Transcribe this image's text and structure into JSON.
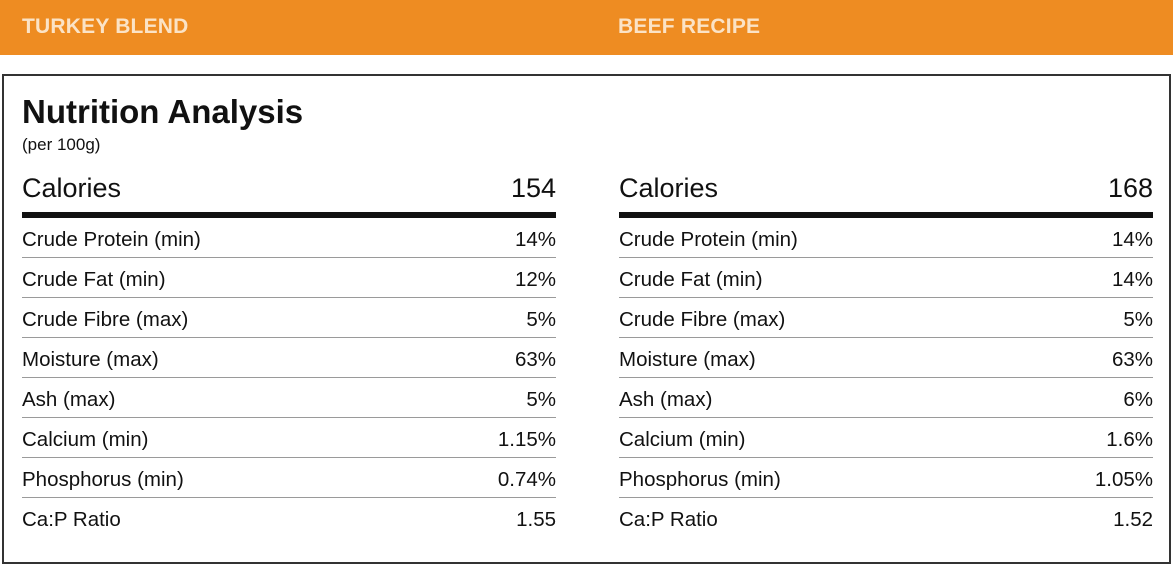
{
  "header": {
    "left_label": "TURKEY BLEND",
    "right_label": "BEEF RECIPE"
  },
  "panel": {
    "title": "Nutrition Analysis",
    "subtitle": "(per 100g)"
  },
  "turkey": {
    "calories": {
      "label": "Calories",
      "value": "154"
    },
    "rows": [
      {
        "label": "Crude Protein (min)",
        "value": "14%"
      },
      {
        "label": "Crude Fat (min)",
        "value": "12%"
      },
      {
        "label": "Crude Fibre (max)",
        "value": "5%"
      },
      {
        "label": "Moisture (max)",
        "value": "63%"
      },
      {
        "label": "Ash (max)",
        "value": "5%"
      },
      {
        "label": "Calcium (min)",
        "value": "1.15%"
      },
      {
        "label": "Phosphorus (min)",
        "value": "0.74%"
      },
      {
        "label": "Ca:P Ratio",
        "value": "1.55"
      }
    ]
  },
  "beef": {
    "calories": {
      "label": "Calories",
      "value": "168"
    },
    "rows": [
      {
        "label": "Crude Protein (min)",
        "value": "14%"
      },
      {
        "label": "Crude Fat (min)",
        "value": "14%"
      },
      {
        "label": "Crude Fibre (max)",
        "value": "5%"
      },
      {
        "label": "Moisture (max)",
        "value": "63%"
      },
      {
        "label": "Ash (max)",
        "value": "6%"
      },
      {
        "label": "Calcium (min)",
        "value": "1.6%"
      },
      {
        "label": "Phosphorus (min)",
        "value": "1.05%"
      },
      {
        "label": "Ca:P Ratio",
        "value": "1.52"
      }
    ]
  },
  "colors": {
    "header_bg": "#ee8c22",
    "header_text": "#fbe3c6",
    "border": "#333333"
  }
}
